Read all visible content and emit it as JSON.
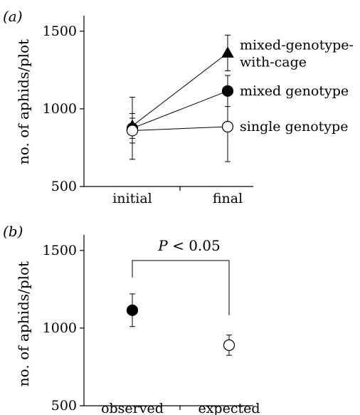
{
  "chart_data": [
    {
      "type": "line",
      "panel_label": "(a)",
      "ylabel": "no. of aphids/plot",
      "ylim": [
        500,
        1600
      ],
      "yticks": [
        500,
        1000,
        1500
      ],
      "categories": [
        "initial",
        "final"
      ],
      "series": [
        {
          "name": "mixed-genotype-with-cage",
          "name_lines": [
            "mixed-genotype-",
            "with-cage"
          ],
          "marker": "filled-triangle",
          "values": [
            890,
            1360
          ],
          "errors": [
            80,
            115
          ]
        },
        {
          "name": "mixed genotype",
          "name_lines": [
            "mixed genotype"
          ],
          "marker": "filled-circle",
          "values": [
            875,
            1115
          ],
          "errors": [
            200,
            100
          ]
        },
        {
          "name": "single genotype",
          "name_lines": [
            "single genotype"
          ],
          "marker": "open-circle",
          "values": [
            860,
            885
          ],
          "errors": [
            80,
            225
          ]
        }
      ]
    },
    {
      "type": "scatter",
      "panel_label": "(b)",
      "ylabel": "no. of aphids/plot",
      "ylim": [
        500,
        1600
      ],
      "yticks": [
        500,
        1000,
        1500
      ],
      "categories": [
        "observed",
        "expected"
      ],
      "points": [
        {
          "category": "observed",
          "marker": "filled-circle",
          "value": 1115,
          "error": 105
        },
        {
          "category": "expected",
          "marker": "open-circle",
          "value": 890,
          "error": 65
        }
      ],
      "annotation": {
        "italic": "P",
        "text": " < 0.05"
      }
    }
  ]
}
